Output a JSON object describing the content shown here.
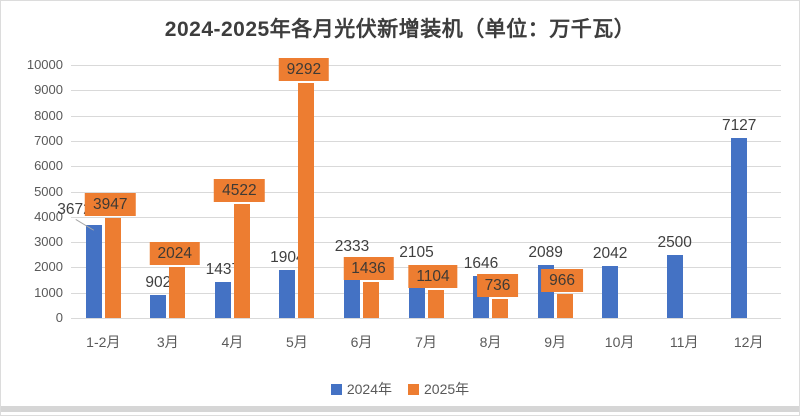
{
  "window": {
    "background": "#ffffff",
    "border_color": "#dcdcdc",
    "bottom_strip_color": "#d6d6d6"
  },
  "chart_data": {
    "type": "bar",
    "title": "2024-2025年各月光伏新增装机（单位：万千瓦）",
    "categories": [
      "1-2月",
      "3月",
      "4月",
      "5月",
      "6月",
      "7月",
      "8月",
      "9月",
      "10月",
      "11月",
      "12月"
    ],
    "series": [
      {
        "name": "2024年",
        "color": "#4472C4",
        "label_style": "plain",
        "values": [
          3672,
          902,
          1437,
          1904,
          2333,
          2105,
          1646,
          2089,
          2042,
          2500,
          7127
        ]
      },
      {
        "name": "2025年",
        "color": "#ED7D31",
        "label_style": "boxed",
        "label_box_color": "#ED7D31",
        "values": [
          3947,
          2024,
          4522,
          9292,
          1436,
          1104,
          736,
          966,
          null,
          null,
          null
        ]
      }
    ],
    "ylim": [
      0,
      10000
    ],
    "ytick_step": 1000,
    "grid": true,
    "gridline_color": "#D9D9D9",
    "axis_text_color": "#595959",
    "value_label_color": "#3F3F3F",
    "title_color": "#3D3D3D",
    "legend_position": "bottom",
    "annotations": [
      {
        "type": "leader-line",
        "series": "2024年",
        "category": "1-2月",
        "color": "#A6A6A6"
      }
    ]
  }
}
